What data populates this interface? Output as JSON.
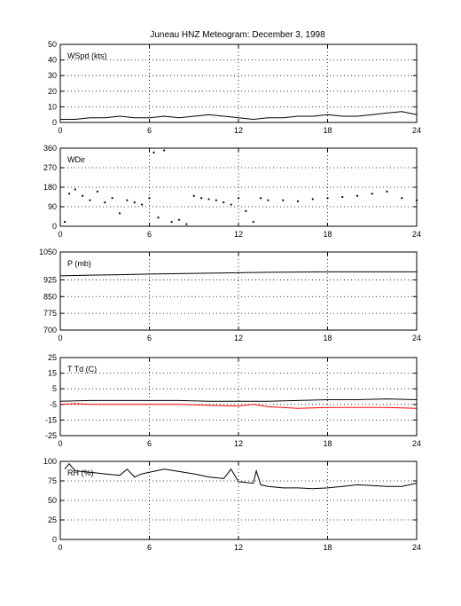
{
  "title": "Juneau HNZ Meteogram:  December  3, 1998",
  "chart_data": [
    {
      "type": "line",
      "label": "WSpd (kts)",
      "x_ticks": [
        "0",
        "6",
        "12",
        "18",
        "24"
      ],
      "xlim": [
        0,
        24
      ],
      "y_ticks": [
        "0",
        "10",
        "20",
        "30",
        "40",
        "50"
      ],
      "ylim": [
        0,
        50
      ],
      "grid": true,
      "series": [
        {
          "color": "#000000",
          "x": [
            0,
            1,
            2,
            3,
            4,
            5,
            6,
            7,
            8,
            9,
            10,
            11,
            12,
            13,
            14,
            15,
            16,
            17,
            18,
            19,
            20,
            21,
            22,
            23,
            24
          ],
          "y": [
            2,
            2,
            3,
            3,
            4,
            3,
            3,
            4,
            3,
            4,
            5,
            4,
            3,
            2,
            3,
            3,
            4,
            4,
            5,
            4,
            4,
            5,
            6,
            7,
            5
          ]
        }
      ]
    },
    {
      "type": "scatter",
      "label": "WDir",
      "x_ticks": [
        "0",
        "6",
        "12",
        "18",
        "24"
      ],
      "xlim": [
        0,
        24
      ],
      "y_ticks": [
        "0",
        "90",
        "180",
        "270",
        "360"
      ],
      "ylim": [
        0,
        360
      ],
      "grid": true,
      "series": [
        {
          "color": "#000000",
          "x": [
            0.3,
            0.6,
            1,
            1.5,
            2,
            2.5,
            3,
            3.5,
            4,
            4.5,
            5,
            5.5,
            6,
            6.3,
            6.6,
            7,
            7.5,
            8,
            8.5,
            9,
            9.5,
            10,
            10.5,
            11,
            11.5,
            12,
            12.5,
            13,
            13.5,
            14,
            15,
            16,
            17,
            18,
            19,
            20,
            21,
            22,
            23,
            24
          ],
          "y": [
            20,
            150,
            170,
            140,
            120,
            160,
            110,
            130,
            60,
            120,
            110,
            100,
            130,
            340,
            40,
            350,
            20,
            30,
            10,
            140,
            130,
            125,
            120,
            110,
            100,
            130,
            70,
            20,
            130,
            120,
            120,
            115,
            125,
            130,
            135,
            140,
            150,
            160,
            130,
            120
          ]
        }
      ]
    },
    {
      "type": "line",
      "label": "P (mb)",
      "x_ticks": [
        "0",
        "6",
        "12",
        "18",
        "24"
      ],
      "xlim": [
        0,
        24
      ],
      "y_ticks": [
        "700",
        "775",
        "850",
        "925",
        "1050"
      ],
      "ylim": [
        700,
        1050
      ],
      "grid": true,
      "series": [
        {
          "color": "#000000",
          "x": [
            0,
            2,
            4,
            6,
            8,
            10,
            12,
            14,
            16,
            18,
            20,
            22,
            24
          ],
          "y": [
            943,
            946,
            948,
            951,
            953,
            955,
            957,
            959,
            960,
            961,
            961,
            961,
            961
          ]
        }
      ]
    },
    {
      "type": "line",
      "label": "T Td (C)",
      "x_ticks": [
        "0",
        "6",
        "12",
        "18",
        "24"
      ],
      "xlim": [
        0,
        24
      ],
      "y_ticks": [
        "-25",
        "-15",
        "-5",
        "5",
        "15",
        "25"
      ],
      "ylim": [
        -25,
        25
      ],
      "grid": true,
      "series": [
        {
          "color": "#000000",
          "x": [
            0,
            2,
            4,
            6,
            8,
            10,
            12,
            14,
            16,
            18,
            20,
            22,
            24
          ],
          "y": [
            -3,
            -2.5,
            -2.5,
            -2.5,
            -2.5,
            -3,
            -3,
            -3,
            -2.5,
            -2,
            -2,
            -1.5,
            -2
          ]
        },
        {
          "color": "#ff0000",
          "x": [
            0,
            1,
            2,
            4,
            6,
            8,
            10,
            12,
            13,
            14,
            16,
            18,
            20,
            22,
            24
          ],
          "y": [
            -5,
            -4.5,
            -5,
            -5,
            -5,
            -5,
            -5.5,
            -6,
            -5,
            -6.5,
            -7.5,
            -7,
            -7,
            -7,
            -7.5
          ]
        }
      ]
    },
    {
      "type": "line",
      "label": "RH (%)",
      "x_ticks": [
        "0",
        "6",
        "12",
        "18",
        "24"
      ],
      "xlim": [
        0,
        24
      ],
      "y_ticks": [
        "0",
        "25",
        "50",
        "75",
        "100"
      ],
      "ylim": [
        0,
        100
      ],
      "grid": true,
      "series": [
        {
          "color": "#000000",
          "x": [
            0.3,
            0.6,
            1,
            2,
            3,
            4,
            4.5,
            5,
            5.5,
            6,
            7,
            8,
            9,
            10,
            11,
            11.5,
            12,
            13,
            13.2,
            13.5,
            14,
            15,
            16,
            17,
            18,
            19,
            20,
            21,
            22,
            23,
            24
          ],
          "y": [
            90,
            97,
            88,
            86,
            84,
            82,
            90,
            80,
            84,
            86,
            90,
            87,
            84,
            80,
            78,
            90,
            74,
            72,
            88,
            70,
            68,
            66,
            66,
            65,
            66,
            68,
            70,
            69,
            68,
            68,
            72
          ]
        }
      ]
    }
  ]
}
